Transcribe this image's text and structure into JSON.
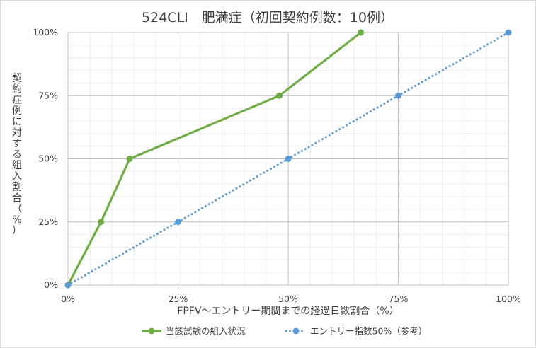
{
  "chart_data": {
    "type": "line",
    "title": "524CLI　肥満症（初回契約例数：10例）",
    "xlabel": "FPFV～エントリー期間までの経過日数割合（%）",
    "ylabel": "契約症例に対する組入割合（%）",
    "x_ticks": [
      "0%",
      "25%",
      "50%",
      "75%",
      "100%"
    ],
    "y_ticks": [
      "0%",
      "25%",
      "50%",
      "75%",
      "100%"
    ],
    "xlim": [
      0,
      100
    ],
    "ylim": [
      0,
      100
    ],
    "grid": true,
    "legend_position": "bottom",
    "series": [
      {
        "name": "当該試験の組入状況",
        "color": "#70ad47",
        "style": "solid",
        "points": [
          [
            0,
            0
          ],
          [
            7.5,
            25
          ],
          [
            14,
            50
          ],
          [
            48,
            75
          ],
          [
            66.5,
            100
          ]
        ]
      },
      {
        "name": "エントリー指数50%（参考）",
        "color": "#5b9bd5",
        "style": "dotted",
        "points": [
          [
            0,
            0
          ],
          [
            25,
            25
          ],
          [
            50,
            50
          ],
          [
            75,
            75
          ],
          [
            100,
            100
          ]
        ]
      }
    ]
  }
}
